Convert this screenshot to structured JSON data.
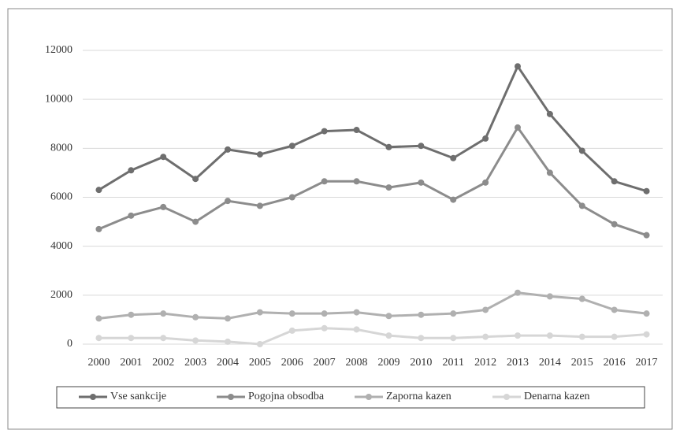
{
  "chart_data": {
    "type": "line",
    "categories": [
      "2000",
      "2001",
      "2002",
      "2003",
      "2004",
      "2005",
      "2006",
      "2007",
      "2008",
      "2009",
      "2010",
      "2011",
      "2012",
      "2013",
      "2014",
      "2015",
      "2016",
      "2017"
    ],
    "series": [
      {
        "name": "Vse sankcije",
        "color": "#6e6e6e",
        "values": [
          6300,
          7100,
          7650,
          6750,
          7950,
          7750,
          8100,
          8700,
          8750,
          8050,
          8100,
          7600,
          8400,
          11350,
          9400,
          7900,
          6650,
          6250
        ]
      },
      {
        "name": "Pogojna obsodba",
        "color": "#8c8c8c",
        "values": [
          4700,
          5250,
          5600,
          5000,
          5850,
          5650,
          6000,
          6650,
          6650,
          6400,
          6600,
          5900,
          6600,
          8850,
          7000,
          5650,
          4900,
          4450
        ]
      },
      {
        "name": "Zaporna kazen",
        "color": "#b0b0b0",
        "values": [
          1050,
          1200,
          1250,
          1100,
          1050,
          1300,
          1250,
          1250,
          1300,
          1150,
          1200,
          1250,
          1400,
          2100,
          1950,
          1850,
          1400,
          1250
        ]
      },
      {
        "name": "Denarna kazen",
        "color": "#d6d6d6",
        "values": [
          250,
          250,
          250,
          150,
          100,
          0,
          550,
          650,
          600,
          350,
          250,
          250,
          300,
          350,
          350,
          300,
          300,
          400
        ]
      }
    ],
    "ylim": [
      0,
      12000
    ],
    "yticks": [
      0,
      2000,
      4000,
      6000,
      8000,
      10000,
      12000
    ],
    "grid": true,
    "legend": "bottom"
  }
}
